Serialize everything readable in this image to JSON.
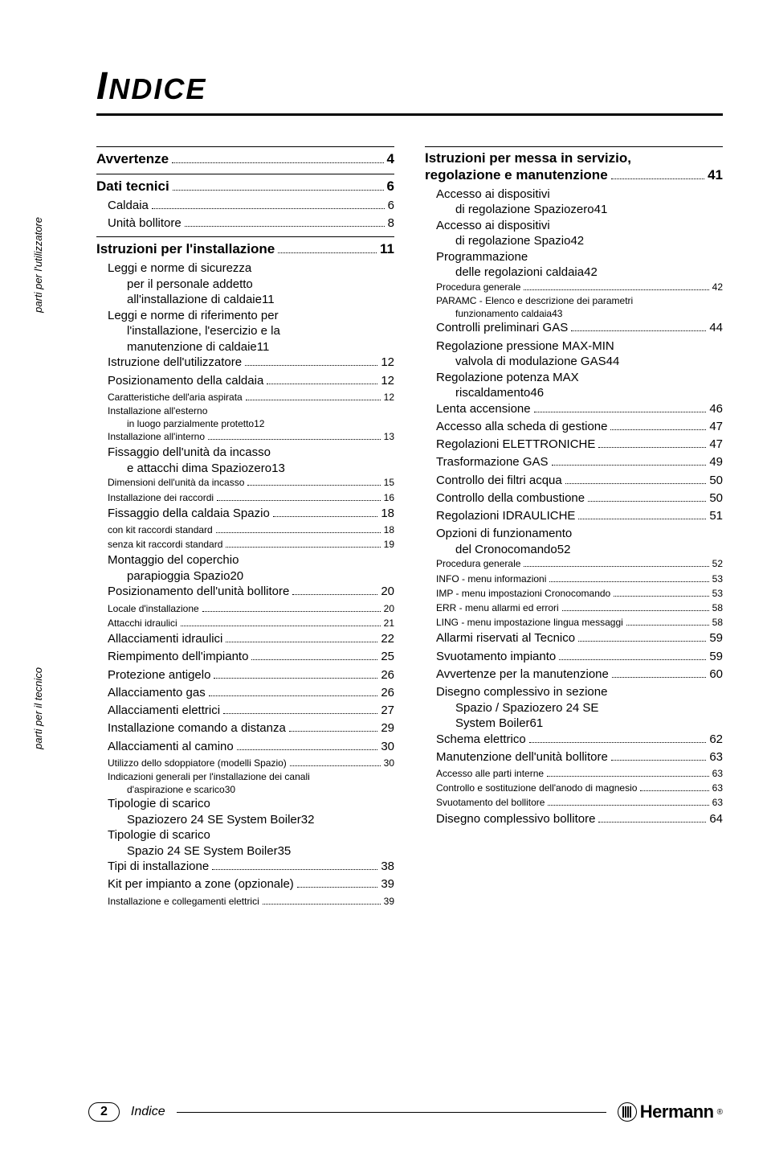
{
  "title": "INDICE",
  "side_labels": {
    "utilizzatore": "parti per l'utilizzatore",
    "tecnico": "parti per il tecnico"
  },
  "left_column": [
    {
      "type": "rule"
    },
    {
      "level": 1,
      "label": "Avvertenze",
      "page": "4"
    },
    {
      "type": "rule"
    },
    {
      "level": 1,
      "label": "Dati tecnici",
      "page": "6"
    },
    {
      "level": 2,
      "label": "Caldaia",
      "page": "6"
    },
    {
      "level": 2,
      "label": "Unità bollitore",
      "page": "8"
    },
    {
      "type": "rule"
    },
    {
      "level": 1,
      "label": "Istruzioni per l'installazione",
      "page": "11"
    },
    {
      "level": 2,
      "multi": true,
      "line1": "Leggi e norme di sicurezza",
      "line2_pre": "per il personale addetto",
      "line3": "all'installazione di caldaie",
      "page": "11"
    },
    {
      "level": 2,
      "multi": true,
      "line1": "Leggi e norme di riferimento per",
      "line2_pre": "l'installazione, l'esercizio e la",
      "line3": "manutenzione di caldaie",
      "page": "11"
    },
    {
      "level": 2,
      "label": "Istruzione dell'utilizzatore",
      "page": "12"
    },
    {
      "level": 2,
      "label": "Posizionamento della caldaia",
      "page": "12"
    },
    {
      "level": 3,
      "label": "Caratteristiche dell'aria aspirata",
      "page": "12"
    },
    {
      "level": 3,
      "multi": true,
      "line1": "Installazione all'esterno",
      "line2": "in luogo parzialmente protetto",
      "page": "12"
    },
    {
      "level": 3,
      "label": "Installazione all'interno",
      "page": "13"
    },
    {
      "level": 2,
      "multi": true,
      "line1": "Fissaggio dell'unità da incasso",
      "line2": "e attacchi dima Spaziozero",
      "page": "13"
    },
    {
      "level": 3,
      "label": "Dimensioni dell'unità da incasso",
      "page": "15"
    },
    {
      "level": 3,
      "label": "Installazione dei raccordi",
      "page": "16"
    },
    {
      "level": 2,
      "label": "Fissaggio della caldaia Spazio",
      "page": "18"
    },
    {
      "level": 3,
      "label": "con kit raccordi standard",
      "page": "18"
    },
    {
      "level": 3,
      "label": "senza kit raccordi standard",
      "page": "19"
    },
    {
      "level": 2,
      "multi": true,
      "line1": "Montaggio del coperchio",
      "line2": "parapioggia Spazio",
      "page": "20"
    },
    {
      "level": 2,
      "label": "Posizionamento dell'unità bollitore",
      "page": "20"
    },
    {
      "level": 3,
      "label": "Locale d'installazione",
      "page": "20"
    },
    {
      "level": 3,
      "label": "Attacchi idraulici",
      "page": "21"
    },
    {
      "level": 2,
      "label": "Allacciamenti idraulici",
      "page": "22"
    },
    {
      "level": 2,
      "label": "Riempimento dell'impianto",
      "page": "25"
    },
    {
      "level": 2,
      "label": "Protezione antigelo",
      "page": "26"
    },
    {
      "level": 2,
      "label": "Allacciamento gas",
      "page": "26"
    },
    {
      "level": 2,
      "label": "Allacciamenti elettrici",
      "page": "27"
    },
    {
      "level": 2,
      "label": "Installazione comando a distanza",
      "page": "29"
    },
    {
      "level": 2,
      "label": "Allacciamenti al camino",
      "page": "30"
    },
    {
      "level": 3,
      "label": "Utilizzo dello sdoppiatore (modelli Spazio)",
      "page": "30"
    },
    {
      "level": 3,
      "multi": true,
      "line1": "Indicazioni generali per l'installazione dei canali",
      "line2": "d'aspirazione e scarico",
      "page": "30"
    },
    {
      "level": 2,
      "multi": true,
      "line1": "Tipologie di scarico",
      "line2": "Spaziozero 24 SE System Boiler",
      "page": "32"
    },
    {
      "level": 2,
      "multi": true,
      "line1": "Tipologie di scarico",
      "line2": "Spazio 24 SE System Boiler",
      "page": "35"
    },
    {
      "level": 2,
      "label": "Tipi di installazione",
      "page": "38"
    },
    {
      "level": 2,
      "label": "Kit per impianto a zone (opzionale)",
      "page": "39"
    },
    {
      "level": 3,
      "label": "Installazione e collegamenti elettrici",
      "page": "39"
    }
  ],
  "right_column": [
    {
      "type": "rule"
    },
    {
      "level": 1,
      "multi": true,
      "line1": "Istruzioni per messa in servizio,",
      "line2": "regolazione e manutenzione",
      "page": "41"
    },
    {
      "level": 2,
      "multi": true,
      "line1": "Accesso ai dispositivi",
      "line2": "di regolazione Spaziozero",
      "page": "41"
    },
    {
      "level": 2,
      "multi": true,
      "line1": "Accesso ai dispositivi",
      "line2": "di regolazione Spazio",
      "page": "42"
    },
    {
      "level": 2,
      "multi": true,
      "line1": "Programmazione",
      "line2": "delle regolazioni caldaia",
      "page": "42"
    },
    {
      "level": 3,
      "label": "Procedura generale",
      "page": "42"
    },
    {
      "level": 3,
      "multi": true,
      "line1": "PARAMC - Elenco e descrizione dei parametri",
      "line2": "funzionamento caldaia",
      "page": "43"
    },
    {
      "level": 2,
      "label": "Controlli preliminari GAS",
      "page": "44"
    },
    {
      "level": 2,
      "multi": true,
      "line1": "Regolazione pressione MAX-MIN",
      "line2": "valvola di modulazione GAS",
      "page": "44"
    },
    {
      "level": 2,
      "multi": true,
      "line1": "Regolazione potenza MAX",
      "line2": "riscaldamento",
      "page": "46"
    },
    {
      "level": 2,
      "label": "Lenta accensione",
      "page": "46"
    },
    {
      "level": 2,
      "label": "Accesso alla scheda di gestione",
      "page": "47"
    },
    {
      "level": 2,
      "label": "Regolazioni ELETTRONICHE",
      "page": "47"
    },
    {
      "level": 2,
      "label": "Trasformazione GAS",
      "page": "49"
    },
    {
      "level": 2,
      "label": "Controllo dei filtri acqua",
      "page": "50"
    },
    {
      "level": 2,
      "label": "Controllo della combustione",
      "page": "50"
    },
    {
      "level": 2,
      "label": "Regolazioni IDRAULICHE",
      "page": "51"
    },
    {
      "level": 2,
      "multi": true,
      "line1": "Opzioni di funzionamento",
      "line2": "del Cronocomando",
      "page": "52"
    },
    {
      "level": 3,
      "label": "Procedura generale",
      "page": "52"
    },
    {
      "level": 3,
      "label": "INFO - menu informazioni",
      "page": "53"
    },
    {
      "level": 3,
      "label": "IMP - menu impostazioni Cronocomando",
      "page": "53"
    },
    {
      "level": 3,
      "label": "ERR - menu allarmi ed errori",
      "page": "58"
    },
    {
      "level": 3,
      "label": "LING - menu impostazione lingua messaggi",
      "page": "58"
    },
    {
      "level": 2,
      "label": "Allarmi riservati al Tecnico",
      "page": "59"
    },
    {
      "level": 2,
      "label": "Svuotamento impianto",
      "page": "59"
    },
    {
      "level": 2,
      "label": "Avvertenze per la manutenzione",
      "page": "60"
    },
    {
      "level": 2,
      "multi": true,
      "line1": "Disegno complessivo in sezione",
      "line2_pre": "Spazio / Spaziozero 24 SE",
      "line3": "System Boiler",
      "page": "61"
    },
    {
      "level": 2,
      "label": "Schema elettrico",
      "page": "62"
    },
    {
      "level": 2,
      "label": "Manutenzione dell'unità bollitore",
      "page": "63"
    },
    {
      "level": 3,
      "label": "Accesso alle parti interne",
      "page": "63"
    },
    {
      "level": 3,
      "label": "Controllo e sostituzione dell'anodo di magnesio",
      "page": "63"
    },
    {
      "level": 3,
      "label": "Svuotamento del bollitore",
      "page": "63"
    },
    {
      "level": 2,
      "label": "Disegno complessivo bollitore",
      "page": "64"
    }
  ],
  "footer": {
    "page_number": "2",
    "section_label": "Indice",
    "brand": "Hermann"
  },
  "colors": {
    "text": "#000000",
    "background": "#ffffff"
  }
}
